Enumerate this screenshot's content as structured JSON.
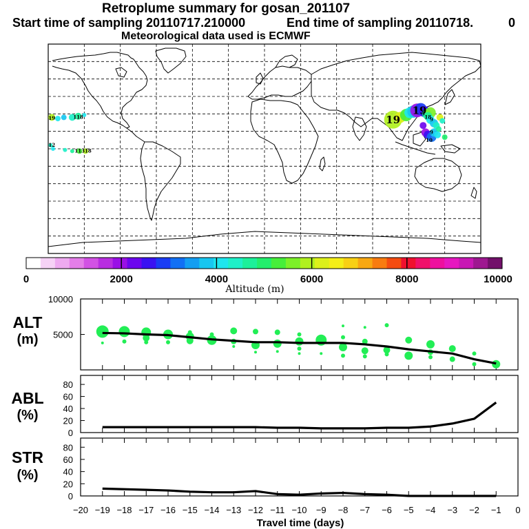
{
  "title": {
    "line1": "Retroplume summary for gosan_201107",
    "start": "Start time of sampling 20110717.210000",
    "end": "End time of sampling 20110718.",
    "end_suffix": "0",
    "met": "Meteorological data used is ECMWF"
  },
  "colorbar": {
    "label": "Altitude (m)",
    "ticks": [
      "0",
      "2000",
      "4000",
      "6000",
      "8000",
      "10000"
    ],
    "colors": [
      "#ffffff",
      "#f6d2f6",
      "#eeaaf0",
      "#e47ee8",
      "#d252e4",
      "#b82ee0",
      "#9a10e6",
      "#6c06ee",
      "#3a12f2",
      "#1a3cf4",
      "#1270f4",
      "#149ef2",
      "#18c6f0",
      "#1ee6ee",
      "#1ef0c8",
      "#1cf09a",
      "#22ee6c",
      "#46ee3a",
      "#7cf028",
      "#b0f01e",
      "#dcf01a",
      "#f4ee18",
      "#f8d014",
      "#f8a812",
      "#f87c10",
      "#f44c10",
      "#f0102e",
      "#f0106a",
      "#ee109e",
      "#e618c0",
      "#c818b4",
      "#9e1890",
      "#72106a"
    ]
  },
  "map": {
    "plume_labels": [
      {
        "text": "19",
        "lon": 107,
        "lat": 25,
        "size": "large"
      },
      {
        "text": "19",
        "lon": 129,
        "lat": 33,
        "size": "large"
      },
      {
        "text": "18",
        "lon": 136,
        "lat": 27,
        "size": "small"
      },
      {
        "text": "9",
        "lon": 139,
        "lat": 25,
        "size": "small"
      },
      {
        "text": "9",
        "lon": 139,
        "lat": 14,
        "size": "small"
      },
      {
        "text": "5",
        "lon": 132,
        "lat": 30,
        "size": "small"
      },
      {
        "text": "10",
        "lon": 137,
        "lat": 7,
        "size": "small"
      },
      {
        "text": "19",
        "lon": -177,
        "lat": 26,
        "size": "small"
      },
      {
        "text": "118",
        "lon": -155,
        "lat": 27,
        "size": "small"
      },
      {
        "text": "12",
        "lon": -177,
        "lat": 3,
        "size": "small"
      },
      {
        "text": "11318",
        "lon": -151,
        "lat": -2,
        "size": "small"
      }
    ]
  },
  "chart_data": [
    {
      "type": "line",
      "panel": "ALT",
      "ylabel_line1": "ALT",
      "ylabel_line2": "(m)",
      "ylim": [
        0,
        10000
      ],
      "yticks": [
        "10000",
        "5000"
      ],
      "x": [
        -19,
        -18,
        -17,
        -16,
        -15,
        -14,
        -13,
        -12,
        -11,
        -10,
        -9,
        -8,
        -7,
        -6,
        -5,
        -4,
        -3,
        -2,
        -1
      ],
      "series": [
        {
          "name": "mean altitude",
          "values": [
            5200,
            5150,
            5000,
            4900,
            4600,
            4300,
            4100,
            3900,
            3900,
            3800,
            3800,
            3800,
            3600,
            3300,
            2900,
            2600,
            2300,
            1500,
            900
          ]
        }
      ],
      "scatter": [
        {
          "x": -19,
          "y": 5400,
          "s": 9
        },
        {
          "x": -19,
          "y": 3800,
          "s": 2
        },
        {
          "x": -18,
          "y": 5400,
          "s": 8
        },
        {
          "x": -18,
          "y": 4000,
          "s": 3
        },
        {
          "x": -17,
          "y": 5300,
          "s": 7
        },
        {
          "x": -17,
          "y": 4500,
          "s": 5
        },
        {
          "x": -17,
          "y": 3900,
          "s": 3
        },
        {
          "x": -16,
          "y": 5000,
          "s": 7
        },
        {
          "x": -16,
          "y": 3900,
          "s": 3
        },
        {
          "x": -15,
          "y": 4700,
          "s": 6
        },
        {
          "x": -15,
          "y": 4100,
          "s": 5
        },
        {
          "x": -15,
          "y": 5300,
          "s": 3
        },
        {
          "x": -14,
          "y": 4200,
          "s": 7
        },
        {
          "x": -14,
          "y": 5000,
          "s": 3
        },
        {
          "x": -13,
          "y": 5500,
          "s": 5
        },
        {
          "x": -13,
          "y": 4000,
          "s": 4
        },
        {
          "x": -13,
          "y": 3300,
          "s": 2
        },
        {
          "x": -12,
          "y": 5400,
          "s": 4
        },
        {
          "x": -12,
          "y": 3500,
          "s": 6
        },
        {
          "x": -12,
          "y": 2500,
          "s": 2
        },
        {
          "x": -11,
          "y": 5300,
          "s": 4
        },
        {
          "x": -11,
          "y": 3700,
          "s": 6
        },
        {
          "x": -11,
          "y": 2600,
          "s": 2
        },
        {
          "x": -10,
          "y": 5000,
          "s": 3
        },
        {
          "x": -10,
          "y": 4000,
          "s": 6
        },
        {
          "x": -10,
          "y": 3000,
          "s": 3
        },
        {
          "x": -10,
          "y": 2300,
          "s": 2
        },
        {
          "x": -9,
          "y": 4200,
          "s": 8
        },
        {
          "x": -9,
          "y": 2300,
          "s": 2
        },
        {
          "x": -8,
          "y": 6200,
          "s": 2
        },
        {
          "x": -8,
          "y": 3200,
          "s": 6
        },
        {
          "x": -8,
          "y": 4600,
          "s": 3
        },
        {
          "x": -8,
          "y": 2000,
          "s": 3
        },
        {
          "x": -7,
          "y": 6000,
          "s": 2
        },
        {
          "x": -7,
          "y": 4000,
          "s": 4
        },
        {
          "x": -7,
          "y": 2700,
          "s": 5
        },
        {
          "x": -7,
          "y": 1900,
          "s": 3
        },
        {
          "x": -6,
          "y": 6300,
          "s": 3
        },
        {
          "x": -6,
          "y": 2800,
          "s": 5
        },
        {
          "x": -6,
          "y": 2200,
          "s": 3
        },
        {
          "x": -5,
          "y": 4200,
          "s": 5
        },
        {
          "x": -5,
          "y": 2000,
          "s": 6
        },
        {
          "x": -4,
          "y": 3600,
          "s": 6
        },
        {
          "x": -4,
          "y": 2500,
          "s": 4
        },
        {
          "x": -4,
          "y": 1800,
          "s": 3
        },
        {
          "x": -3,
          "y": 3000,
          "s": 5
        },
        {
          "x": -3,
          "y": 1500,
          "s": 4
        },
        {
          "x": -2,
          "y": 2300,
          "s": 3
        },
        {
          "x": -2,
          "y": 800,
          "s": 3
        },
        {
          "x": -1,
          "y": 800,
          "s": 6
        }
      ]
    },
    {
      "type": "line",
      "panel": "ABL",
      "ylabel_line1": "ABL",
      "ylabel_line2": "(%)",
      "ylim": [
        0,
        95
      ],
      "yticks": [
        "0",
        "20",
        "40",
        "60",
        "80"
      ],
      "x": [
        -19,
        -18,
        -17,
        -16,
        -15,
        -14,
        -13,
        -12,
        -11,
        -10,
        -9,
        -8,
        -7,
        -6,
        -5,
        -4,
        -3,
        -2,
        -1
      ],
      "series": [
        {
          "name": "ABL fraction",
          "values": [
            9,
            9,
            9,
            9,
            9,
            9,
            9,
            9,
            8,
            8,
            7,
            7,
            7,
            8,
            8,
            10,
            15,
            23,
            50
          ]
        }
      ]
    },
    {
      "type": "line",
      "panel": "STR",
      "ylabel_line1": "STR",
      "ylabel_line2": "(%)",
      "ylim": [
        0,
        95
      ],
      "yticks": [
        "0",
        "20",
        "40",
        "60",
        "80"
      ],
      "x": [
        -19,
        -18,
        -17,
        -16,
        -15,
        -14,
        -13,
        -12,
        -11,
        -10,
        -9,
        -8,
        -7,
        -6,
        -5,
        -4,
        -3,
        -2,
        -1
      ],
      "series": [
        {
          "name": "stratospheric fraction",
          "values": [
            12,
            11,
            10,
            9,
            7,
            6,
            6,
            8,
            3,
            2,
            4,
            5,
            3,
            2,
            0,
            0,
            0,
            0,
            0
          ]
        }
      ],
      "xlabel": "Travel time (days)",
      "xlim": [
        -20,
        0
      ],
      "xticks": [
        "−20",
        "−19",
        "−18",
        "−17",
        "−16",
        "−15",
        "−14",
        "−13",
        "−12",
        "−11",
        "−10",
        "−9",
        "−8",
        "−7",
        "−6",
        "−5",
        "−4",
        "−3",
        "−2",
        "−1",
        "0"
      ]
    }
  ]
}
